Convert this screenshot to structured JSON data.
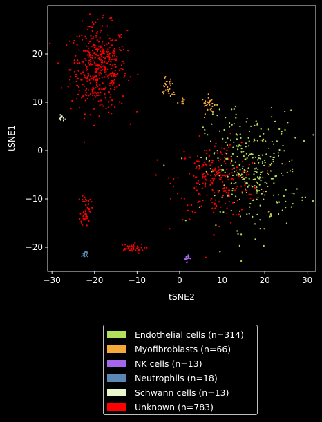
{
  "chart_data": {
    "type": "scatter",
    "xlabel": "tSNE2",
    "ylabel": "tSNE1",
    "xlim": [
      -31,
      32
    ],
    "ylim": [
      -25,
      30
    ],
    "xticks": [
      -30,
      -20,
      -10,
      0,
      10,
      20,
      30
    ],
    "yticks": [
      -20,
      -10,
      0,
      10,
      20
    ],
    "grid": false,
    "legend_position": "below",
    "background": "#000000",
    "series": [
      {
        "name": "Endothelial cells (n=314)",
        "color": "#b2e05a",
        "n": 314,
        "clusters": [
          {
            "cx": 17,
            "cy": -4,
            "sx": 5.5,
            "sy": 6,
            "n": 310
          },
          {
            "cx": 11,
            "cy": 9,
            "sx": 1,
            "sy": 1,
            "n": 4
          }
        ]
      },
      {
        "name": "Myofibroblasts (n=66)",
        "color": "#f6a93b",
        "n": 66,
        "clusters": [
          {
            "cx": -3,
            "cy": 13.5,
            "sx": 0.8,
            "sy": 0.8,
            "n": 22
          },
          {
            "cx": 7,
            "cy": 9.5,
            "sx": 0.9,
            "sy": 0.9,
            "n": 28
          },
          {
            "cx": 1,
            "cy": 10,
            "sx": 0.6,
            "sy": 0.6,
            "n": 10
          },
          {
            "cx": -2,
            "cy": 11.5,
            "sx": 0.4,
            "sy": 0.4,
            "n": 6
          }
        ]
      },
      {
        "name": "NK cells (n=13)",
        "color": "#a566ee",
        "n": 13,
        "clusters": [
          {
            "cx": 1.7,
            "cy": -22.2,
            "sx": 0.3,
            "sy": 0.4,
            "n": 13
          }
        ]
      },
      {
        "name": "Neutrophils (n=18)",
        "color": "#5b87b5",
        "n": 18,
        "clusters": [
          {
            "cx": -22.3,
            "cy": -21.4,
            "sx": 0.35,
            "sy": 0.35,
            "n": 18
          }
        ]
      },
      {
        "name": "Schwann cells (n=13)",
        "color": "#eaf6cc",
        "n": 13,
        "clusters": [
          {
            "cx": -27.7,
            "cy": 6.7,
            "sx": 0.3,
            "sy": 0.3,
            "n": 13
          }
        ]
      },
      {
        "name": "Unknown (n=783)",
        "color": "#ff0000",
        "n": 783,
        "clusters": [
          {
            "cx": -19,
            "cy": 17,
            "sx": 3.3,
            "sy": 4.5,
            "n": 440
          },
          {
            "cx": 9,
            "cy": -6,
            "sx": 5,
            "sy": 4,
            "n": 250
          },
          {
            "cx": -22,
            "cy": -12,
            "sx": 0.6,
            "sy": 1.8,
            "n": 50
          },
          {
            "cx": -11.5,
            "cy": -20.3,
            "sx": 1.6,
            "sy": 0.5,
            "n": 43
          }
        ]
      }
    ]
  },
  "legend": {
    "items": [
      {
        "label": "Endothelial cells (n=314)",
        "color": "#b2e05a"
      },
      {
        "label": "Myofibroblasts (n=66)",
        "color": "#f6a93b"
      },
      {
        "label": "NK cells (n=13)",
        "color": "#a566ee"
      },
      {
        "label": "Neutrophils (n=18)",
        "color": "#5b87b5"
      },
      {
        "label": "Schwann cells (n=13)",
        "color": "#eaf6cc"
      },
      {
        "label": "Unknown (n=783)",
        "color": "#ff0000"
      }
    ]
  }
}
